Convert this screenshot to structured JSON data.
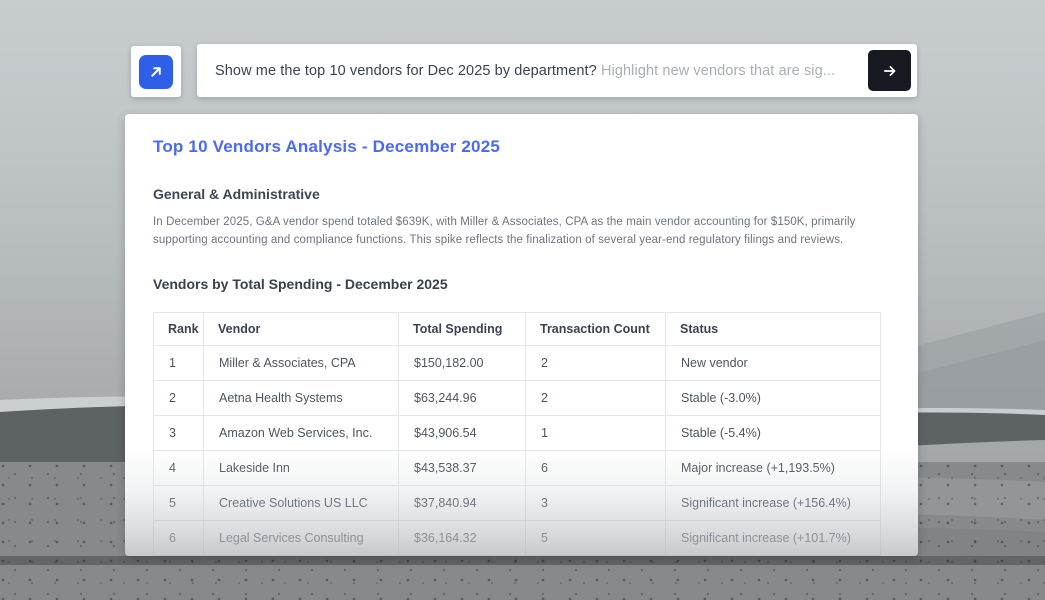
{
  "wallpaper": {
    "sky_top": "#c7cccf",
    "sand": "#868a8b",
    "dune_dark": "#5d6264",
    "dune_light": "#d2d5d5"
  },
  "prompt_bar": {
    "query": "Show me the top 10 vendors for Dec 2025 by department?",
    "query_hint": " Highlight new vendors that are sig...",
    "launch_icon": "arrow-up-right",
    "send_icon": "arrow-right",
    "accent_blue": "#2e5fe6",
    "send_black": "#171a20"
  },
  "report": {
    "title": "Top 10 Vendors Analysis - December 2025",
    "title_color": "#4a6bf0",
    "department_heading": "General & Administrative",
    "summary": "In December 2025, G&A vendor spend totaled $639K, with Miller & Associates, CPA as the main vendor accounting for $150K, primarily supporting accounting and compliance functions. This spike reflects the finalization of several year-end regulatory filings and reviews.",
    "table_heading": "Vendors by Total Spending - December 2025",
    "table": {
      "columns": [
        "Rank",
        "Vendor",
        "Total Spending",
        "Transaction Count",
        "Status"
      ],
      "rows": [
        [
          "1",
          "Miller & Associates, CPA",
          "$150,182.00",
          "2",
          "New vendor"
        ],
        [
          "2",
          "Aetna Health Systems",
          "$63,244.96",
          "2",
          "Stable (-3.0%)"
        ],
        [
          "3",
          "Amazon Web Services, Inc.",
          "$43,906.54",
          "1",
          "Stable (-5.4%)"
        ],
        [
          "4",
          "Lakeside Inn",
          "$43,538.37",
          "6",
          "Major increase (+1,193.5%)"
        ],
        [
          "5",
          "Creative Solutions US LLC",
          "$37,840.94",
          "3",
          "Significant increase (+156.4%)"
        ],
        [
          "6",
          "Legal Services Consulting",
          "$36,164.32",
          "5",
          "Significant increase (+101.7%)"
        ]
      ]
    }
  }
}
